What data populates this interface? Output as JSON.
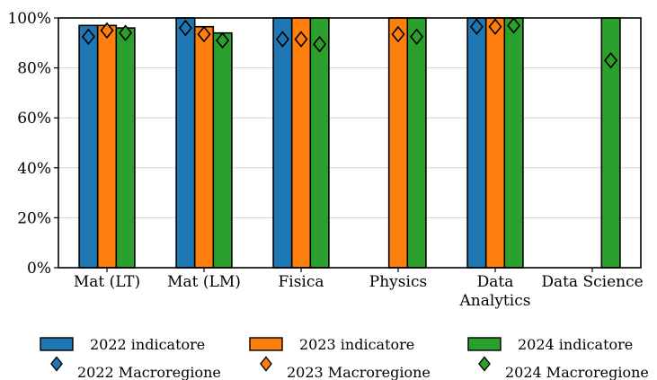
{
  "chart_data": {
    "type": "bar",
    "categories": [
      "Mat (LT)",
      "Mat (LM)",
      "Fisica",
      "Physics",
      "Data Analytics",
      "Data Science"
    ],
    "category_label_lines": [
      [
        "Mat (LT)"
      ],
      [
        "Mat (LM)"
      ],
      [
        "Fisica"
      ],
      [
        "Physics"
      ],
      [
        "Data",
        "Analytics"
      ],
      [
        "Data Science"
      ]
    ],
    "ylim": [
      0,
      100
    ],
    "yticks": [
      0,
      20,
      40,
      60,
      80,
      100
    ],
    "ytick_labels": [
      "0%",
      "20%",
      "40%",
      "60%",
      "80%",
      "100%"
    ],
    "grid": "horizontal",
    "legend_position": "bottom",
    "series": [
      {
        "name": "2022 indicatore",
        "color": "#1f77b4",
        "values": [
          97,
          100,
          100,
          null,
          100,
          null
        ]
      },
      {
        "name": "2023 indicatore",
        "color": "#ff7f0e",
        "values": [
          97,
          96.5,
          100,
          100,
          100,
          null
        ]
      },
      {
        "name": "2024 indicatore",
        "color": "#2ca02c",
        "values": [
          96,
          94,
          100,
          100,
          100,
          100
        ]
      }
    ],
    "markers": [
      {
        "name": "2022 Macroregione",
        "color": "#1f77b4",
        "values": [
          92.5,
          96,
          91.5,
          null,
          96.5,
          null
        ]
      },
      {
        "name": "2023 Macroregione",
        "color": "#ff7f0e",
        "values": [
          95,
          93.5,
          91.5,
          93.5,
          96.5,
          null
        ]
      },
      {
        "name": "2024 Macroregione",
        "color": "#2ca02c",
        "values": [
          94,
          91,
          89.5,
          92.5,
          97,
          83
        ]
      }
    ]
  }
}
